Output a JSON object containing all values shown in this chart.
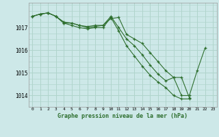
{
  "title": "Graphe pression niveau de la mer (hPa)",
  "background_color": "#cde8e8",
  "grid_color": "#b0d4cc",
  "line_color": "#2d6e2d",
  "xlim": [
    -0.5,
    23.5
  ],
  "ylim": [
    1013.5,
    1018.1
  ],
  "yticks": [
    1014,
    1015,
    1016,
    1017
  ],
  "xticks": [
    0,
    1,
    2,
    3,
    4,
    5,
    6,
    7,
    8,
    9,
    10,
    11,
    12,
    13,
    14,
    15,
    16,
    17,
    18,
    19,
    20,
    21,
    22,
    23
  ],
  "series": [
    [
      1017.5,
      1017.6,
      1017.65,
      1017.5,
      1017.25,
      1017.2,
      1017.1,
      1017.05,
      1017.1,
      1017.1,
      1017.4,
      1017.45,
      1016.7,
      1016.5,
      1016.3,
      1015.9,
      1015.5,
      1015.1,
      1014.8,
      1014.0,
      1014.0,
      1015.1,
      1016.1,
      null
    ],
    [
      1017.5,
      1017.6,
      1017.65,
      1017.5,
      1017.2,
      1017.2,
      1017.1,
      1017.0,
      1017.05,
      1017.1,
      1017.5,
      1017.0,
      1016.5,
      1016.2,
      1015.8,
      1015.35,
      1014.95,
      1014.65,
      1014.8,
      1014.8,
      1013.9,
      null,
      null,
      null
    ],
    [
      1017.5,
      1017.6,
      1017.65,
      1017.5,
      1017.2,
      1017.1,
      1017.0,
      1016.95,
      1017.0,
      1017.0,
      1017.45,
      1016.85,
      1016.2,
      1015.75,
      1015.3,
      1014.9,
      1014.6,
      1014.35,
      1014.0,
      1013.85,
      1013.85,
      null,
      null,
      null
    ]
  ]
}
